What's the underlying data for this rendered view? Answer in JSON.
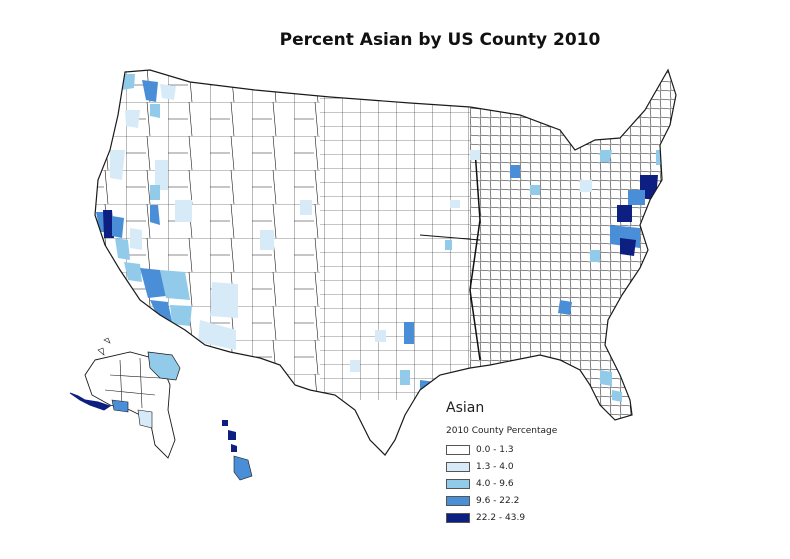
{
  "map": {
    "title": "Percent Asian by US County 2010"
  },
  "legend": {
    "heading": "Asian",
    "subheading": "2010 County Percentage",
    "classes": [
      {
        "label": "0.0 - 1.3",
        "color": "#ffffff"
      },
      {
        "label": "1.3 - 4.0",
        "color": "#d6ebf7"
      },
      {
        "label": "4.0 - 9.6",
        "color": "#92cbea"
      },
      {
        "label": "9.6 - 22.2",
        "color": "#4a8ed8"
      },
      {
        "label": "22.2 - 43.9",
        "color": "#0d1f80"
      }
    ]
  },
  "colors": {
    "county_border": "#1a1a1a",
    "land_default": "#ffffff"
  }
}
